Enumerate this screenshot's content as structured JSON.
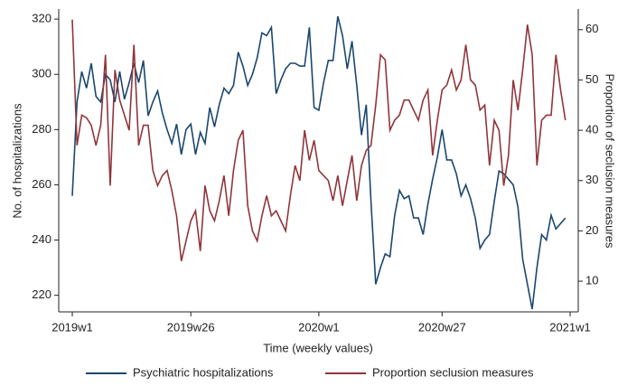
{
  "chart_data": {
    "type": "line",
    "x_label": "Time (weekly values)",
    "y_label": "No. of hospitalizations",
    "y2_label": "Proportion of seclusion measures",
    "categories": [
      "2019w1",
      null,
      null,
      null,
      null,
      null,
      null,
      null,
      null,
      null,
      null,
      null,
      null,
      null,
      null,
      null,
      null,
      null,
      null,
      null,
      null,
      null,
      null,
      null,
      null,
      "2019w26",
      null,
      null,
      null,
      null,
      null,
      null,
      null,
      null,
      null,
      null,
      null,
      null,
      null,
      null,
      null,
      null,
      null,
      null,
      null,
      null,
      null,
      null,
      null,
      null,
      null,
      null,
      "2020w1",
      null,
      null,
      null,
      null,
      null,
      null,
      null,
      null,
      null,
      null,
      null,
      null,
      null,
      null,
      null,
      null,
      null,
      null,
      null,
      null,
      null,
      null,
      null,
      null,
      null,
      "2020w27",
      null,
      null,
      null,
      null,
      null,
      null,
      null,
      null,
      null,
      null,
      null,
      null,
      null,
      null,
      null,
      null,
      null,
      null,
      null,
      null,
      null,
      null,
      null,
      null,
      null,
      null,
      "2021w1"
    ],
    "series": [
      {
        "name": "Psychiatric hospitalizations",
        "color": "#1a476f",
        "values": [
          256,
          290,
          301,
          295,
          304,
          292,
          290,
          300,
          298,
          290,
          301,
          291,
          297,
          304,
          297,
          305,
          285,
          290,
          294,
          286,
          280,
          275,
          282,
          271,
          280,
          282,
          271,
          279,
          275,
          288,
          281,
          289,
          295,
          293,
          296,
          308,
          303,
          296,
          300,
          306,
          315,
          314,
          317,
          293,
          298,
          302,
          304,
          304,
          303,
          303,
          317,
          288,
          287,
          297,
          305,
          305,
          321,
          314,
          302,
          312,
          296,
          278,
          289,
          254,
          224,
          230,
          235,
          234,
          249,
          258,
          255,
          256,
          248,
          248,
          242,
          253,
          262,
          270,
          280,
          269,
          269,
          264,
          256,
          260,
          255,
          248,
          237,
          240,
          242,
          254,
          265,
          264,
          262,
          260,
          252,
          233,
          224,
          215,
          230,
          242,
          240,
          249,
          244,
          246,
          248,
          null
        ]
      },
      {
        "name": "Proportion seclusion measures",
        "color": "#90353b",
        "axis": "y2",
        "values": [
          62,
          37,
          43,
          42.5,
          41,
          37,
          41,
          55,
          29,
          52,
          46,
          43,
          40,
          57,
          37,
          41,
          41,
          32,
          29,
          31,
          32,
          28,
          23,
          14,
          18,
          22,
          24,
          16,
          29,
          24,
          22,
          26,
          31,
          23,
          32,
          38,
          40,
          25,
          20,
          18,
          23,
          27,
          23,
          24,
          22,
          20,
          27,
          33,
          30,
          40,
          34,
          38,
          32,
          31,
          30,
          26,
          31,
          25,
          30,
          35,
          26,
          33,
          36,
          37,
          45,
          55,
          54,
          40,
          42,
          43,
          46,
          46,
          44,
          42,
          46,
          48,
          35,
          42,
          48,
          49,
          52,
          48,
          50,
          57,
          50,
          49,
          44,
          45,
          33,
          42,
          40,
          29,
          35,
          50,
          44,
          52,
          61,
          55,
          33,
          42,
          43,
          43,
          55,
          48,
          42,
          null
        ]
      }
    ],
    "ylim": [
      214,
      322
    ],
    "yticks": [
      220,
      240,
      260,
      280,
      300,
      320
    ],
    "y2lim": [
      3.9,
      63.2
    ],
    "y2ticks": [
      10,
      20,
      30,
      40,
      50,
      60
    ],
    "legend": "bottom"
  }
}
